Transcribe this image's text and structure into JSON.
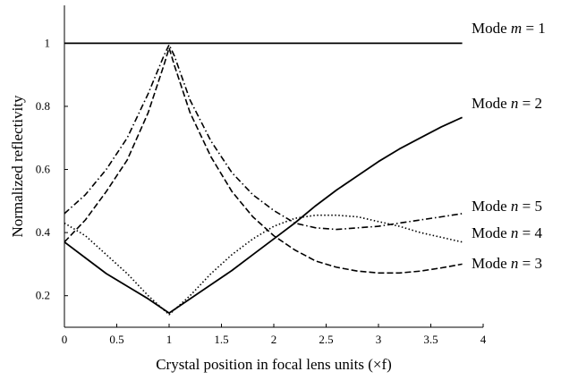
{
  "chart_data": {
    "type": "line",
    "title": "",
    "xlabel": "Crystal position in focal lens units (×f)",
    "ylabel": "Normalized reflectivity",
    "xlim": [
      0,
      4
    ],
    "ylim": [
      0.1,
      1.12
    ],
    "xticks": [
      0,
      0.5,
      1,
      1.5,
      2,
      2.5,
      3,
      3.5,
      4
    ],
    "xtick_labels": [
      "0",
      "0.5",
      "1",
      "1.5",
      "2",
      "2.5",
      "3",
      "3.5",
      "4"
    ],
    "yticks": [
      0.2,
      0.4,
      0.6,
      0.8,
      1
    ],
    "ytick_labels": [
      "0.2",
      "0.4",
      "0.6",
      "0.8",
      "1"
    ],
    "grid": false,
    "legend": "none (curves labelled at right end)",
    "series": [
      {
        "name": "Mode m = 1",
        "label_prefix": "Mode ",
        "label_var": "m",
        "label_eq": " = 1",
        "style": "solid",
        "x": [
          0,
          3.8
        ],
        "y": [
          1.0,
          1.0
        ]
      },
      {
        "name": "Mode n = 2",
        "label_prefix": "Mode ",
        "label_var": "n",
        "label_eq": " = 2",
        "style": "solid",
        "x": [
          0,
          0.2,
          0.4,
          0.6,
          0.8,
          1.0,
          1.2,
          1.4,
          1.6,
          1.8,
          2.0,
          2.2,
          2.4,
          2.6,
          2.8,
          3.0,
          3.2,
          3.4,
          3.6,
          3.8
        ],
        "y": [
          0.37,
          0.32,
          0.27,
          0.23,
          0.19,
          0.145,
          0.19,
          0.235,
          0.28,
          0.33,
          0.38,
          0.43,
          0.485,
          0.535,
          0.58,
          0.625,
          0.665,
          0.7,
          0.735,
          0.765
        ]
      },
      {
        "name": "Mode n = 5",
        "label_prefix": "Mode ",
        "label_var": "n",
        "label_eq": " = 5",
        "style": "dotted",
        "x": [
          0,
          0.2,
          0.4,
          0.6,
          0.8,
          1.0,
          1.2,
          1.4,
          1.6,
          1.8,
          2.0,
          2.2,
          2.4,
          2.6,
          2.8,
          3.0,
          3.2,
          3.4,
          3.6,
          3.8
        ],
        "y": [
          0.43,
          0.39,
          0.33,
          0.27,
          0.2,
          0.14,
          0.2,
          0.27,
          0.33,
          0.38,
          0.42,
          0.445,
          0.455,
          0.455,
          0.45,
          0.435,
          0.42,
          0.4,
          0.385,
          0.37
        ]
      },
      {
        "name": "Mode n = 4",
        "label_prefix": "Mode ",
        "label_var": "n",
        "label_eq": " = 4",
        "style": "dashdot",
        "x": [
          0,
          0.2,
          0.4,
          0.6,
          0.8,
          0.95,
          1.0,
          1.05,
          1.2,
          1.4,
          1.6,
          1.8,
          2.0,
          2.2,
          2.4,
          2.6,
          2.8,
          3.0,
          3.2,
          3.4,
          3.6,
          3.8
        ],
        "y": [
          0.46,
          0.52,
          0.6,
          0.7,
          0.84,
          0.96,
          0.995,
          0.96,
          0.82,
          0.69,
          0.59,
          0.52,
          0.47,
          0.43,
          0.415,
          0.41,
          0.415,
          0.42,
          0.43,
          0.44,
          0.45,
          0.46
        ]
      },
      {
        "name": "Mode n = 3",
        "label_prefix": "Mode ",
        "label_var": "n",
        "label_eq": " = 3",
        "style": "dashed",
        "x": [
          0,
          0.2,
          0.4,
          0.6,
          0.8,
          0.95,
          1.0,
          1.05,
          1.2,
          1.4,
          1.6,
          1.8,
          2.0,
          2.2,
          2.4,
          2.6,
          2.8,
          3.0,
          3.2,
          3.4,
          3.6,
          3.8
        ],
        "y": [
          0.37,
          0.44,
          0.53,
          0.63,
          0.78,
          0.93,
          0.985,
          0.93,
          0.78,
          0.64,
          0.53,
          0.45,
          0.39,
          0.345,
          0.31,
          0.29,
          0.278,
          0.272,
          0.272,
          0.278,
          0.288,
          0.3
        ]
      }
    ]
  }
}
